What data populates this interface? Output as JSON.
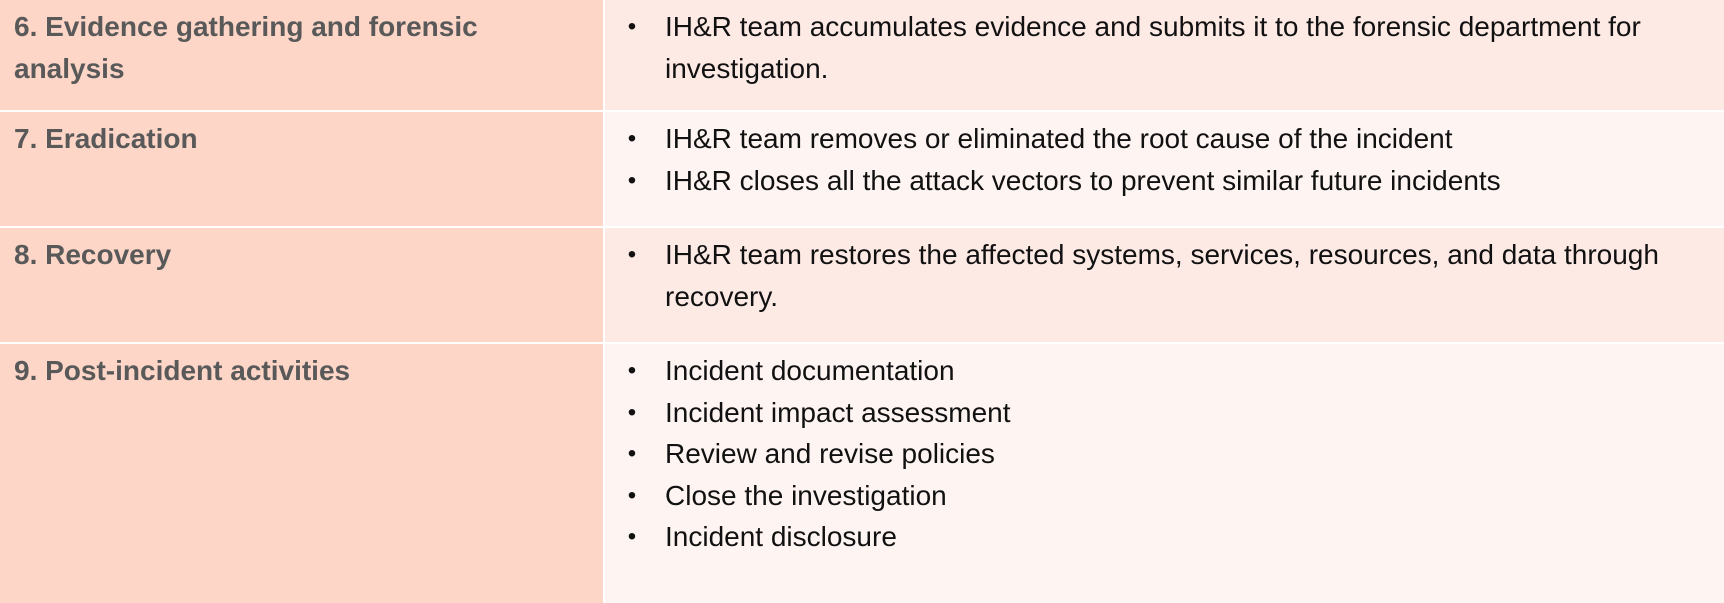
{
  "rows": [
    {
      "title": "6. Evidence gathering and forensic analysis",
      "bullets": [
        "IH&R team accumulates evidence and submits it to the forensic department for investigation."
      ]
    },
    {
      "title": "7. Eradication",
      "bullets": [
        "IH&R team removes or eliminated the root cause of the incident",
        "IH&R closes all the attack vectors to prevent similar future incidents"
      ]
    },
    {
      "title": "8. Recovery",
      "bullets": [
        "IH&R team restores the affected systems, services, resources, and data through recovery."
      ]
    },
    {
      "title": "9. Post-incident activities",
      "bullets": [
        "Incident documentation",
        "Incident impact assessment",
        "Review and revise policies",
        "Close the investigation",
        "Incident disclosure"
      ]
    }
  ],
  "bullet_glyph": "•",
  "colors": {
    "left_cell": "#fdd6c7",
    "right_cell_a": "#fdeae5",
    "right_cell_b": "#fef4f2",
    "title_text": "#595959"
  }
}
